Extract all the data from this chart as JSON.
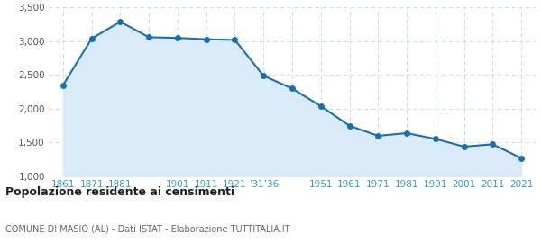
{
  "x_labels": [
    "1861",
    "1871",
    "1881",
    "",
    "1901",
    "1911",
    "1921",
    "’31’36",
    "",
    "1951",
    "1961",
    "1971",
    "1981",
    "1991",
    "2001",
    "2011",
    "2021"
  ],
  "x_positions": [
    0,
    1,
    2,
    3,
    4,
    5,
    6,
    7,
    8,
    9,
    10,
    11,
    12,
    13,
    14,
    15,
    16
  ],
  "y_values": [
    2350,
    3040,
    3290,
    3060,
    3050,
    3030,
    3020,
    2490,
    2300,
    2040,
    1750,
    1600,
    1640,
    1555,
    1440,
    1475,
    1270
  ],
  "line_color": "#1a6faf",
  "fill_color": "#daeaf8",
  "marker_color": "#1a6faf",
  "background_color": "#ffffff",
  "grid_color": "#c8d8e8",
  "ylim": [
    1000,
    3500
  ],
  "yticks": [
    1000,
    1500,
    2000,
    2500,
    3000,
    3500
  ],
  "title": "Popolazione residente ai censimenti",
  "subtitle": "COMUNE DI MASIO (AL) - Dati ISTAT - Elaborazione TUTTITALIA.IT",
  "title_color": "#222222",
  "subtitle_color": "#666666",
  "xlabel_color": "#3399cc"
}
